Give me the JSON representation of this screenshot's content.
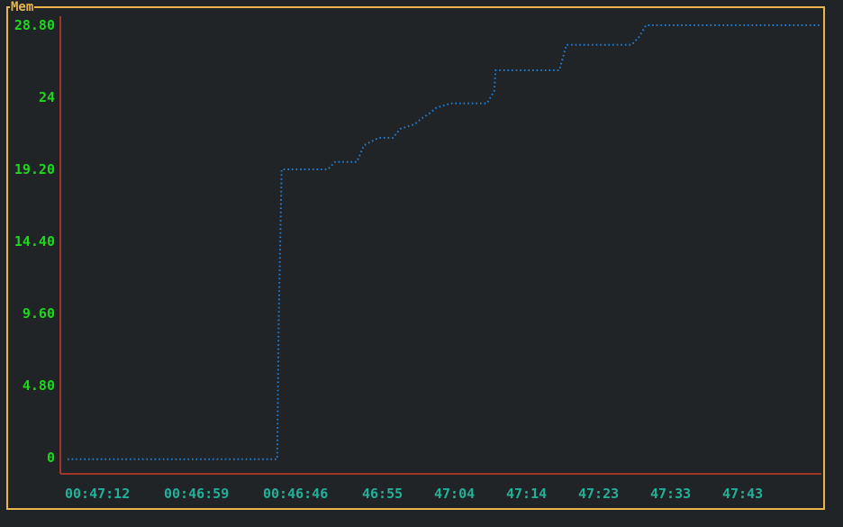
{
  "panel": {
    "title": "Mem"
  },
  "colors": {
    "frame": "#e8b64a",
    "axis": "#cc3a2a",
    "line": "#1e7fd6",
    "ytick": "#1fd61f",
    "xtick": "#22b09a",
    "background": "#212426"
  },
  "chart_data": {
    "type": "line",
    "title": "Mem",
    "xlabel": "",
    "ylabel": "",
    "ylim": [
      0,
      28.8
    ],
    "yticks": [
      "0",
      "4.80",
      "9.60",
      "14.40",
      "19.20",
      "24",
      "28.80"
    ],
    "xticks": [
      "00:47:12",
      "00:46:59",
      "00:46:46",
      "46:55",
      "47:04",
      "47:14",
      "47:23",
      "47:33",
      "47:43"
    ],
    "grid": false,
    "series": [
      {
        "style": "dotted",
        "x": [
          0,
          29,
          29.2,
          29.6,
          30,
          36,
          37,
          40,
          41,
          43,
          45,
          46,
          48,
          49,
          50,
          51,
          53,
          54,
          55,
          58,
          59,
          59.2,
          60,
          68,
          69,
          70,
          78,
          79,
          79.5,
          80,
          104
        ],
        "y": [
          -0.1,
          -0.1,
          9.0,
          19.2,
          19.2,
          19.2,
          19.7,
          19.7,
          20.8,
          21.3,
          21.3,
          21.9,
          22.2,
          22.6,
          22.9,
          23.3,
          23.6,
          23.6,
          23.6,
          23.6,
          24.4,
          25.8,
          25.8,
          25.8,
          27.5,
          27.5,
          27.5,
          28.0,
          28.4,
          28.8,
          28.8
        ]
      }
    ]
  }
}
